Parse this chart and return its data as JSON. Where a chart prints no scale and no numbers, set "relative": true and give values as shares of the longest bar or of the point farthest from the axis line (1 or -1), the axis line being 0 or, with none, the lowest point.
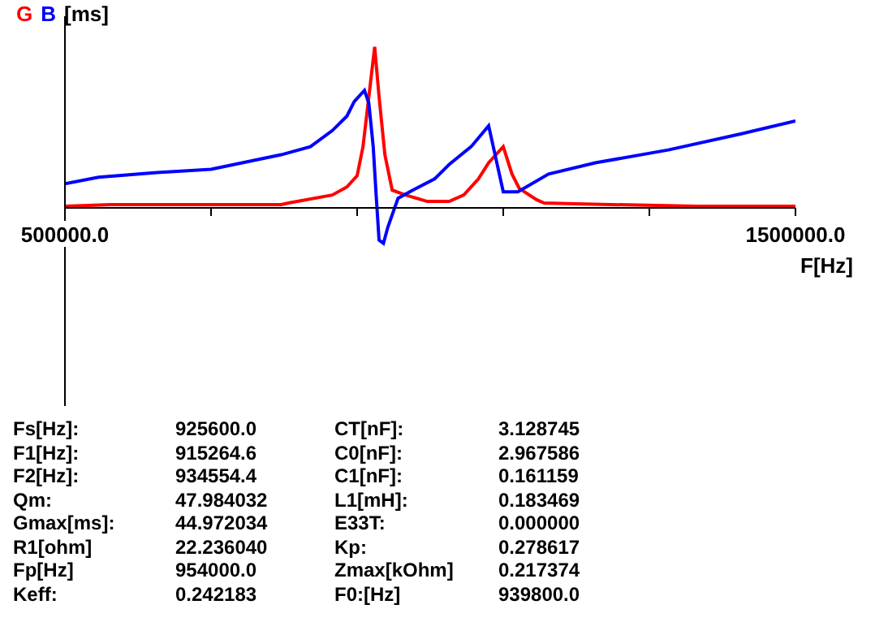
{
  "chart_data": {
    "type": "line",
    "relative": true,
    "xlabel": "F[Hz]",
    "ylabel": "[ms]",
    "xlim": [
      500000,
      1500000
    ],
    "xticks": [
      {
        "value": 500000,
        "label": "500000.0"
      },
      {
        "value": 700000,
        "label": null
      },
      {
        "value": 900000,
        "label": null
      },
      {
        "value": 1100000,
        "label": null
      },
      {
        "value": 1300000,
        "label": null
      },
      {
        "value": 1500000,
        "label": "1500000.0"
      }
    ],
    "series": [
      {
        "name": "G",
        "color": "#ff0000",
        "x": [
          500000,
          562000,
          796000,
          806000,
          866000,
          886000,
          900000,
          908000,
          916000,
          924000,
          930000,
          938000,
          948000,
          966000,
          996000,
          1026000,
          1046000,
          1066000,
          1080000,
          1100000,
          1112000,
          1122000,
          1146000,
          1156000,
          1200000,
          1366000,
          1500000
        ],
        "values": [
          0.01,
          0.02,
          0.02,
          0.03,
          0.08,
          0.13,
          0.2,
          0.38,
          0.69,
          1,
          0.69,
          0.33,
          0.11,
          0.08,
          0.04,
          0.04,
          0.08,
          0.18,
          0.28,
          0.38,
          0.21,
          0.12,
          0.05,
          0.03,
          0.025,
          0.01,
          0.01
        ]
      },
      {
        "name": "B",
        "color": "#0000ff",
        "x": [
          500000,
          546000,
          626000,
          700000,
          796000,
          836000,
          866000,
          886000,
          896000,
          910000,
          916000,
          922000,
          926000,
          930000,
          936000,
          942000,
          956000,
          976000,
          1006000,
          1026000,
          1056000,
          1080000,
          1100000,
          1120000,
          1162000,
          1226000,
          1326000,
          1426000,
          1500000
        ],
        "values": [
          0.15,
          0.19,
          0.22,
          0.24,
          0.33,
          0.38,
          0.48,
          0.57,
          0.66,
          0.73,
          0.65,
          0.38,
          0.08,
          -0.2,
          -0.22,
          -0.12,
          0.06,
          0.11,
          0.18,
          0.27,
          0.38,
          0.51,
          0.1,
          0.1,
          0.21,
          0.28,
          0.36,
          0.46,
          0.54
        ]
      }
    ],
    "annotations": [
      "Fs[Hz]:",
      "925600.0",
      "CT[nF]:",
      "3.128745",
      "F1[Hz]:",
      "915264.6",
      "C0[nF]:",
      "2.967586",
      "F2[Hz]:",
      "934554.4",
      "C1[nF]:",
      "0.161159",
      "Qm:",
      "47.984032",
      "L1[mH]:",
      "0.183469",
      "Gmax[ms]:",
      "44.972034",
      "E33T:",
      "0.000000",
      "R1[ohm]",
      "22.236040",
      "Kp:",
      "0.278617",
      "Fp[Hz]",
      "954000.0",
      "Zmax[kOhm]",
      "0.217374",
      "Keff:",
      "0.242183",
      "F0:[Hz]",
      "939800.0"
    ]
  }
}
